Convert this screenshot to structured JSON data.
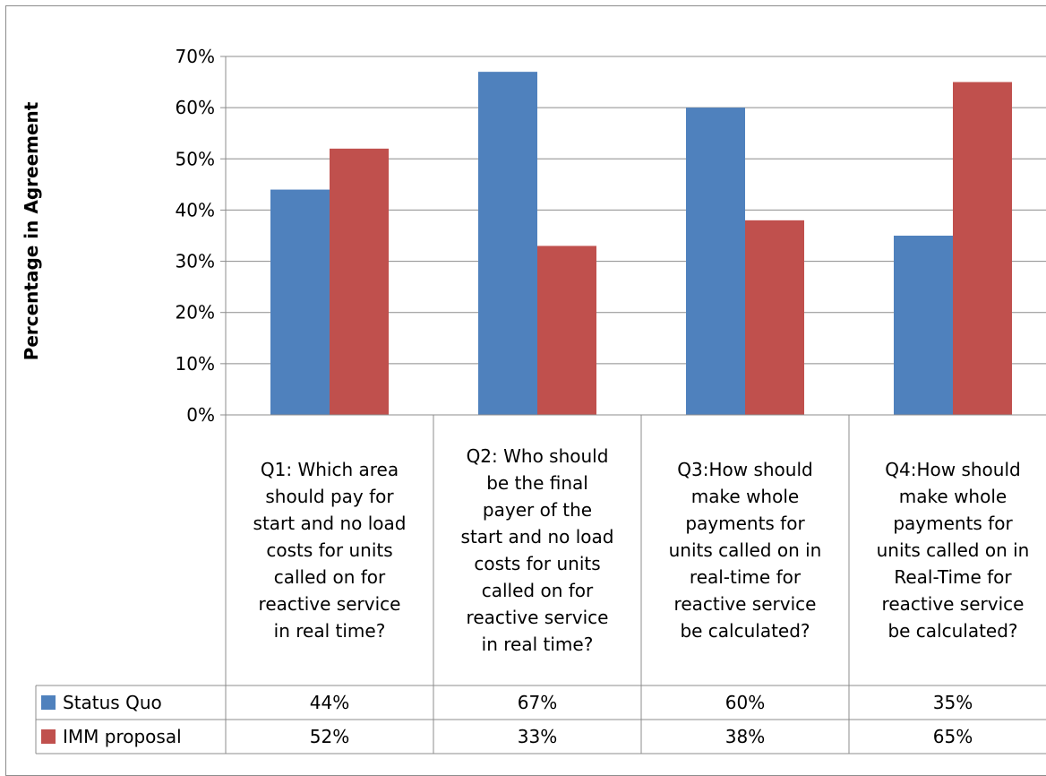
{
  "chart_data": {
    "type": "bar",
    "ylabel": "Percentage in Agreement",
    "ylim": [
      0,
      70
    ],
    "y_ticks": [
      "0%",
      "10%",
      "20%",
      "30%",
      "40%",
      "50%",
      "60%",
      "70%"
    ],
    "grid": "horizontal",
    "legend": "data-table",
    "categories": [
      [
        "Q1: Which area",
        "should pay for",
        "start and no load",
        "costs for units",
        "called on for",
        "reactive service",
        "in real time?"
      ],
      [
        "Q2: Who should",
        "be the final",
        "payer of the",
        "start and no load",
        "costs for units",
        "called on for",
        "reactive service",
        "in real time?"
      ],
      [
        "Q3:How should",
        "make whole",
        "payments for",
        "units called on in",
        "real-time for",
        "reactive service",
        "be calculated?"
      ],
      [
        "Q4:How should",
        "make whole",
        "payments for",
        "units called on in",
        "Real-Time for",
        "reactive service",
        "be calculated?"
      ]
    ],
    "series": [
      {
        "name": "Status Quo",
        "color": "#4f81bd",
        "values": [
          44,
          67,
          60,
          35
        ],
        "labels": [
          "44%",
          "67%",
          "60%",
          "35%"
        ]
      },
      {
        "name": "IMM proposal",
        "color": "#c0504d",
        "values": [
          52,
          33,
          38,
          65
        ],
        "labels": [
          "52%",
          "33%",
          "38%",
          "65%"
        ]
      }
    ]
  }
}
